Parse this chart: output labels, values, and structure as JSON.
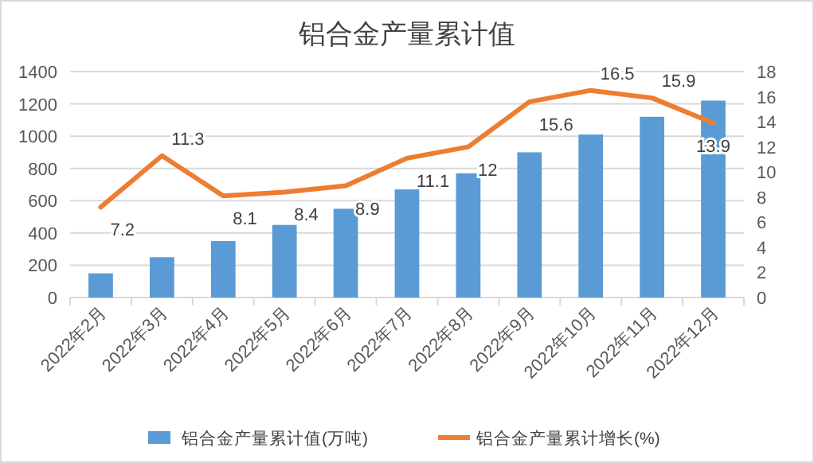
{
  "chart_data": {
    "type": "bar",
    "title": "铝合金产量累计值",
    "categories": [
      "2022年2月",
      "2022年3月",
      "2022年4月",
      "2022年5月",
      "2022年6月",
      "2022年7月",
      "2022年8月",
      "2022年9月",
      "2022年10月",
      "2022年11月",
      "2022年12月"
    ],
    "series": [
      {
        "name": "铝合金产量累计值(万吨)",
        "color": "#5b9bd5",
        "values": [
          150,
          250,
          350,
          450,
          550,
          670,
          770,
          900,
          1010,
          1120,
          1220
        ]
      },
      {
        "name": "铝合金产量累计增长(%)",
        "type": "line",
        "axis": "y2",
        "color": "#ed7d31",
        "values": [
          7.2,
          11.3,
          8.1,
          8.4,
          8.9,
          11.1,
          12,
          15.6,
          16.5,
          15.9,
          13.9
        ],
        "value_labels": [
          "7.2",
          "11.3",
          "8.1",
          "8.4",
          "8.9",
          "11.1",
          "12",
          "15.6",
          "16.5",
          "15.9",
          "13.9"
        ]
      }
    ],
    "ylim": [
      0,
      1400
    ],
    "yticks": [
      0,
      200,
      400,
      600,
      800,
      1000,
      1200,
      1400
    ],
    "y2lim": [
      0,
      18
    ],
    "y2ticks": [
      0,
      2,
      4,
      6,
      8,
      10,
      12,
      14,
      16,
      18
    ],
    "grid": "y",
    "legend": "bottom"
  }
}
